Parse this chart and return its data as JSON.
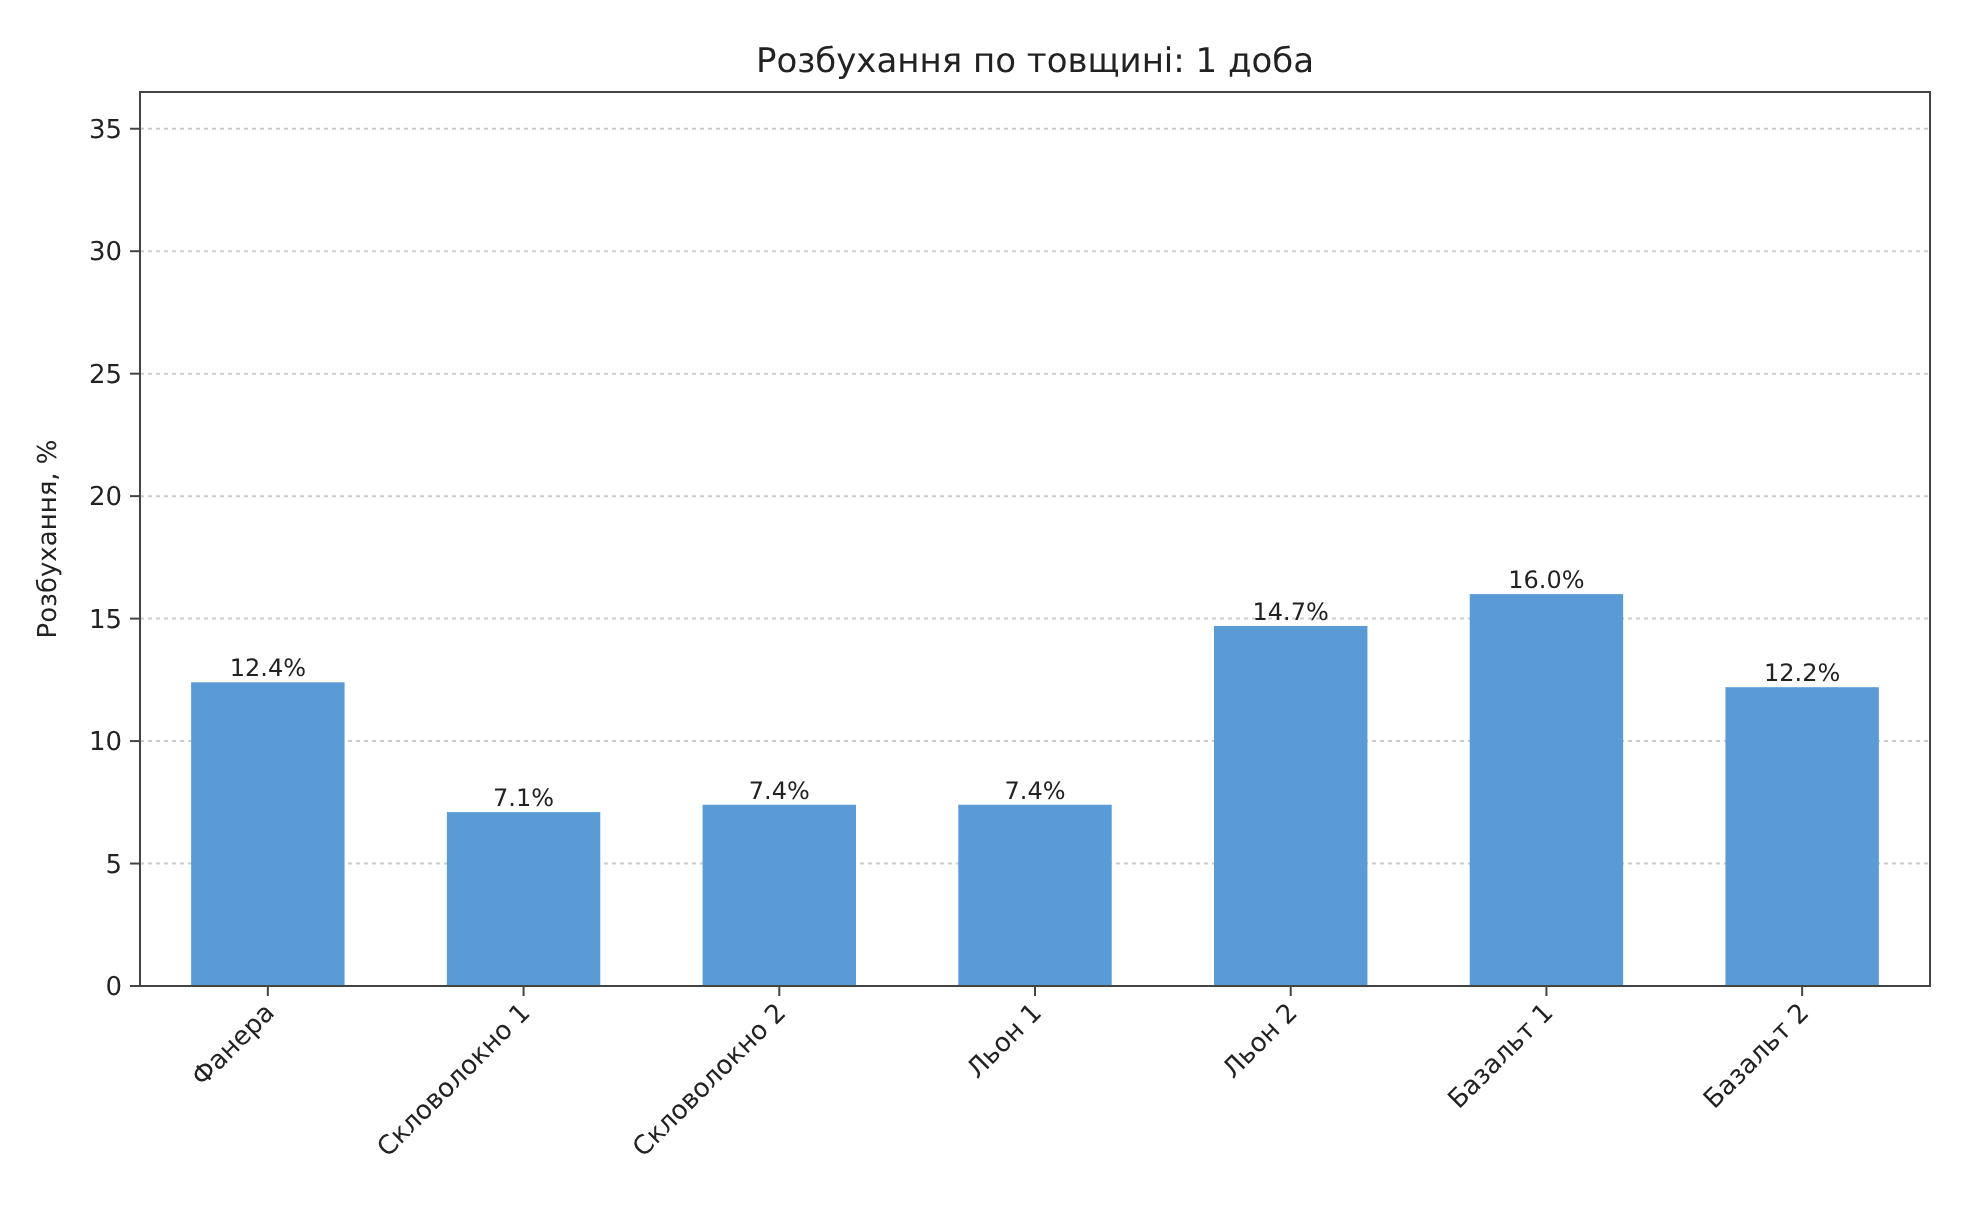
{
  "chart_data": {
    "type": "bar",
    "title": "Розбухання по товщині: 1 доба",
    "ylabel": "Розбухання, %",
    "categories": [
      "Фанера",
      "Скловолокно 1",
      "Скловолокно 2",
      "Льон 1",
      "Льон 2",
      "Базальт 1",
      "Базальт 2"
    ],
    "values": [
      12.4,
      7.1,
      7.4,
      7.4,
      14.7,
      16.0,
      12.2
    ],
    "value_labels": [
      "12.4%",
      "7.1%",
      "7.4%",
      "7.4%",
      "14.7%",
      "16.0%",
      "12.2%"
    ],
    "color": "#5b9bd5",
    "ylim": [
      0,
      36.5
    ],
    "yticks": [
      0,
      5,
      10,
      15,
      20,
      25,
      30,
      35
    ],
    "grid": "y"
  }
}
